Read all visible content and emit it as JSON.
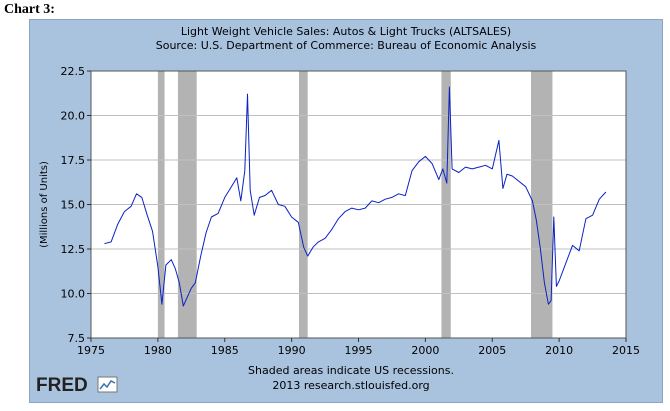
{
  "caption": "Chart 3:",
  "logo_text": "FRED",
  "colors": {
    "frame_bg": "#a9c3df",
    "plot_bg": "#ffffff",
    "grid": "#c0c0c0",
    "recession": "#b3b3b3",
    "line": "#0b22c4"
  },
  "chart_data": {
    "type": "line",
    "title": "Light Weight Vehicle Sales: Autos & Light Trucks (ALTSALES)",
    "subtitle": "Source: U.S. Department of Commerce: Bureau of Economic Analysis",
    "ylabel": "(Millions of Units)",
    "xlabel": "",
    "xlim": [
      1975,
      2015
    ],
    "ylim": [
      7.5,
      22.5
    ],
    "x_ticks": [
      "1975",
      "1980",
      "1985",
      "1990",
      "1995",
      "2000",
      "2005",
      "2010",
      "2015"
    ],
    "y_ticks": [
      "7.5",
      "10.0",
      "12.5",
      "15.0",
      "17.5",
      "20.0",
      "22.5"
    ],
    "grid": true,
    "recessions": [
      [
        1980.0,
        1980.5
      ],
      [
        1981.5,
        1982.9
      ],
      [
        1990.55,
        1991.2
      ],
      [
        2001.2,
        2001.9
      ],
      [
        2007.9,
        2009.5
      ]
    ],
    "notes": [
      "Shaded areas indicate US recessions.",
      "2013 research.stlouisfed.org"
    ],
    "series": [
      {
        "x": [
          1976.0,
          1976.5,
          1977.0,
          1977.5,
          1978.0,
          1978.4,
          1978.8,
          1979.2,
          1979.6,
          1980.0,
          1980.3,
          1980.6,
          1981.0,
          1981.3,
          1981.6,
          1981.9,
          1982.2,
          1982.5,
          1982.8,
          1983.2,
          1983.6,
          1984.0,
          1984.5,
          1985.0,
          1985.5,
          1985.9,
          1986.2,
          1986.5,
          1986.7,
          1986.9,
          1987.2,
          1987.6,
          1988.0,
          1988.5,
          1989.0,
          1989.5,
          1990.0,
          1990.5,
          1990.9,
          1991.2,
          1991.6,
          1992.0,
          1992.5,
          1993.0,
          1993.5,
          1994.0,
          1994.5,
          1995.0,
          1995.5,
          1996.0,
          1996.5,
          1997.0,
          1997.5,
          1998.0,
          1998.5,
          1999.0,
          1999.5,
          2000.0,
          2000.5,
          2001.0,
          2001.3,
          2001.6,
          2001.8,
          2002.0,
          2002.5,
          2003.0,
          2003.5,
          2004.0,
          2004.5,
          2005.0,
          2005.5,
          2005.8,
          2006.1,
          2006.5,
          2007.0,
          2007.5,
          2008.0,
          2008.3,
          2008.6,
          2008.9,
          2009.2,
          2009.4,
          2009.6,
          2009.8,
          2010.0,
          2010.5,
          2011.0,
          2011.5,
          2012.0,
          2012.5,
          2013.0,
          2013.5
        ],
        "y": [
          12.8,
          12.9,
          13.9,
          14.6,
          14.9,
          15.6,
          15.4,
          14.4,
          13.5,
          11.5,
          9.4,
          11.6,
          11.9,
          11.4,
          10.6,
          9.3,
          9.8,
          10.3,
          10.6,
          12.1,
          13.4,
          14.3,
          14.5,
          15.4,
          16.0,
          16.5,
          15.2,
          16.9,
          21.2,
          15.8,
          14.4,
          15.4,
          15.5,
          15.8,
          15.0,
          14.9,
          14.3,
          14.0,
          12.6,
          12.1,
          12.6,
          12.9,
          13.1,
          13.6,
          14.2,
          14.6,
          14.8,
          14.7,
          14.8,
          15.2,
          15.1,
          15.3,
          15.4,
          15.6,
          15.5,
          16.9,
          17.4,
          17.7,
          17.3,
          16.4,
          17.0,
          16.2,
          21.6,
          17.0,
          16.8,
          17.1,
          17.0,
          17.1,
          17.2,
          17.0,
          18.6,
          15.9,
          16.7,
          16.6,
          16.3,
          16.0,
          15.2,
          14.1,
          12.5,
          10.6,
          9.4,
          9.6,
          14.3,
          10.4,
          10.7,
          11.7,
          12.7,
          12.4,
          14.2,
          14.4,
          15.3,
          15.7
        ]
      }
    ]
  }
}
